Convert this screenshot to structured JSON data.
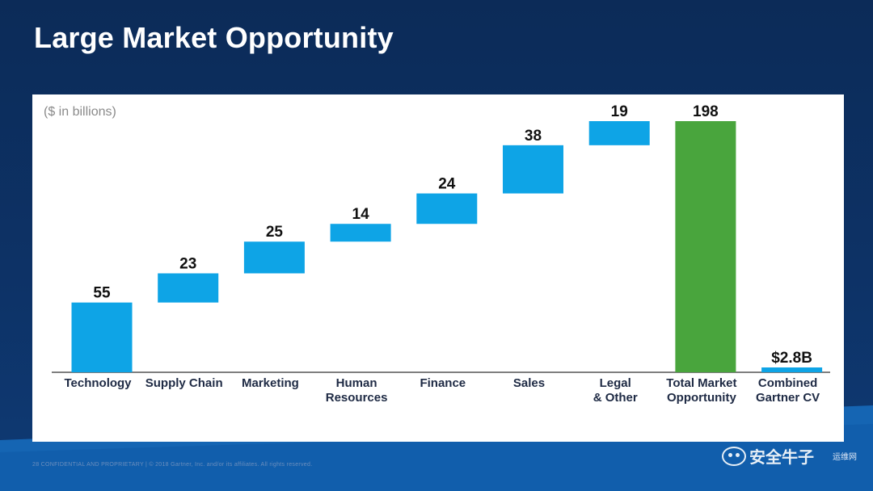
{
  "slide": {
    "title": "Large Market Opportunity",
    "units_note": "($ in billions)",
    "footer": "28    CONFIDENTIAL AND PROPRIETARY  |  © 2018 Gartner, Inc. and/or its affiliates. All rights reserved.",
    "watermark": "安全牛子",
    "watermark_sub": "运维网"
  },
  "colors": {
    "increment": "#0ea4e6",
    "total": "#49a53d",
    "axis": "#555555",
    "background": "#0b2d5c"
  },
  "chart_data": {
    "type": "bar",
    "subtype": "waterfall",
    "title": "",
    "units": "($ in billions)",
    "categories": [
      "Technology",
      "Supply Chain",
      "Marketing",
      "Human Resources",
      "Finance",
      "Sales",
      "Legal & Other",
      "Total Market Opportunity",
      "Combined Gartner CV"
    ],
    "category_lines": [
      [
        "Technology"
      ],
      [
        "Supply Chain"
      ],
      [
        "Marketing"
      ],
      [
        "Human",
        "Resources"
      ],
      [
        "Finance"
      ],
      [
        "Sales"
      ],
      [
        "Legal",
        "& Other"
      ],
      [
        "Total Market",
        "Opportunity"
      ],
      [
        "Combined",
        "Gartner CV"
      ]
    ],
    "values": [
      55,
      23,
      25,
      14,
      24,
      38,
      19,
      198,
      2.8
    ],
    "data_labels": [
      "55",
      "23",
      "25",
      "14",
      "24",
      "38",
      "19",
      "198",
      "$2.8B"
    ],
    "bar_kinds": [
      "increment",
      "increment",
      "increment",
      "increment",
      "increment",
      "increment",
      "increment",
      "total",
      "standalone"
    ],
    "ylim": [
      0,
      198
    ],
    "grid": false,
    "legend": "none"
  }
}
